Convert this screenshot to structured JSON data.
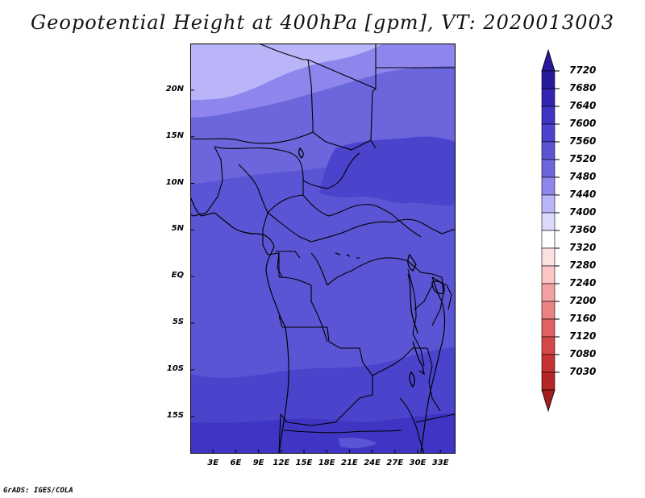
{
  "title": "Geopotential Height at 400hPa [gpm], VT: 2020013003",
  "credit": "GrADS: IGES/COLA",
  "map": {
    "lat_range": [
      -19,
      25
    ],
    "lon_range": [
      0,
      35
    ],
    "lat_labels": [
      {
        "lat": 20,
        "text": "20N"
      },
      {
        "lat": 15,
        "text": "15N"
      },
      {
        "lat": 10,
        "text": "10N"
      },
      {
        "lat": 5,
        "text": "5N"
      },
      {
        "lat": 0,
        "text": "EQ"
      },
      {
        "lat": -5,
        "text": "5S"
      },
      {
        "lat": -10,
        "text": "10S"
      },
      {
        "lat": -15,
        "text": "15S"
      }
    ],
    "lon_labels": [
      {
        "lon": 3,
        "text": "3E"
      },
      {
        "lon": 6,
        "text": "6E"
      },
      {
        "lon": 9,
        "text": "9E"
      },
      {
        "lon": 12,
        "text": "12E"
      },
      {
        "lon": 15,
        "text": "15E"
      },
      {
        "lon": 18,
        "text": "18E"
      },
      {
        "lon": 21,
        "text": "21E"
      },
      {
        "lon": 24,
        "text": "24E"
      },
      {
        "lon": 27,
        "text": "27E"
      },
      {
        "lon": 30,
        "text": "30E"
      },
      {
        "lon": 33,
        "text": "33E"
      }
    ]
  },
  "colorbar": {
    "levels": [
      {
        "value": "7720",
        "color": "#28189b"
      },
      {
        "value": "7680",
        "color": "#3323b0"
      },
      {
        "value": "7640",
        "color": "#3f35c4"
      },
      {
        "value": "7600",
        "color": "#4a43cc"
      },
      {
        "value": "7560",
        "color": "#5a55d4"
      },
      {
        "value": "7520",
        "color": "#6b66dc"
      },
      {
        "value": "7480",
        "color": "#8e86ec"
      },
      {
        "value": "7440",
        "color": "#bab5f8"
      },
      {
        "value": "7400",
        "color": "#dcdafc"
      },
      {
        "value": "7360",
        "color": "#ffffff"
      },
      {
        "value": "7320",
        "color": "#fde0e0"
      },
      {
        "value": "7280",
        "color": "#fbc6c6"
      },
      {
        "value": "7240",
        "color": "#f3a1a1"
      },
      {
        "value": "7200",
        "color": "#ea8282"
      },
      {
        "value": "7160",
        "color": "#e06161"
      },
      {
        "value": "7120",
        "color": "#d64848"
      },
      {
        "value": "7080",
        "color": "#c63232"
      },
      {
        "value": "7030",
        "color": "#b52626"
      }
    ],
    "top_cap_color": "#28189b",
    "bottom_cap_color": "#a31f1f"
  }
}
